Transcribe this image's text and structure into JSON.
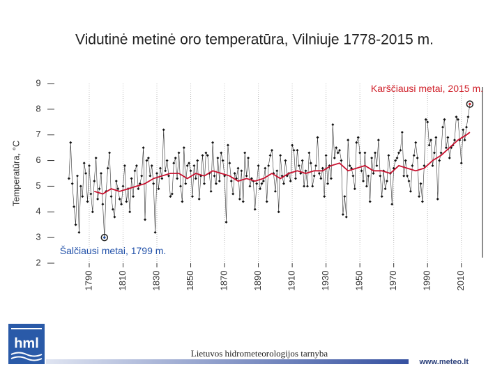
{
  "title": "Vidutinė metinė oro temperatūra, Vilniuje 1778-2015 m.",
  "footer": {
    "organization": "Lietuvos hidrometeorologijos tarnyba",
    "website": "www.meteo.lt",
    "logo": "hml"
  },
  "chart_data": {
    "type": "line",
    "ylabel": "Temperatūra, °C",
    "xlim": [
      1776,
      2020
    ],
    "xticks": [
      1790,
      1810,
      1830,
      1850,
      1870,
      1890,
      1910,
      1930,
      1950,
      1970,
      1990,
      2010
    ],
    "ylim": [
      2,
      9
    ],
    "yticks": [
      2,
      3,
      4,
      5,
      6,
      7,
      8,
      9
    ],
    "grid": true,
    "series": [
      {
        "color": "#333333",
        "x": [
          1778,
          1779,
          1780,
          1781,
          1782,
          1783,
          1784,
          1785,
          1786,
          1787,
          1788,
          1789,
          1790,
          1791,
          1792,
          1793,
          1794,
          1795,
          1796,
          1797,
          1798,
          1799,
          1800,
          1801,
          1802,
          1803,
          1804,
          1805,
          1806,
          1807,
          1808,
          1809,
          1810,
          1811,
          1812,
          1813,
          1814,
          1815,
          1816,
          1817,
          1818,
          1819,
          1820,
          1821,
          1822,
          1823,
          1824,
          1825,
          1826,
          1827,
          1828,
          1829,
          1830,
          1831,
          1832,
          1833,
          1834,
          1835,
          1836,
          1837,
          1838,
          1839,
          1840,
          1841,
          1842,
          1843,
          1844,
          1845,
          1846,
          1847,
          1848,
          1849,
          1850,
          1851,
          1852,
          1853,
          1854,
          1855,
          1856,
          1857,
          1858,
          1859,
          1860,
          1861,
          1862,
          1863,
          1864,
          1865,
          1866,
          1867,
          1868,
          1869,
          1870,
          1871,
          1872,
          1873,
          1874,
          1875,
          1876,
          1877,
          1878,
          1879,
          1880,
          1881,
          1882,
          1883,
          1884,
          1885,
          1886,
          1887,
          1888,
          1889,
          1890,
          1891,
          1892,
          1893,
          1894,
          1895,
          1896,
          1897,
          1898,
          1899,
          1900,
          1901,
          1902,
          1903,
          1904,
          1905,
          1906,
          1907,
          1908,
          1909,
          1910,
          1911,
          1912,
          1913,
          1914,
          1915,
          1916,
          1917,
          1918,
          1919,
          1920,
          1921,
          1922,
          1923,
          1924,
          1925,
          1926,
          1927,
          1928,
          1929,
          1930,
          1931,
          1932,
          1933,
          1934,
          1935,
          1936,
          1937,
          1938,
          1939,
          1940,
          1941,
          1942,
          1943,
          1944,
          1945,
          1946,
          1947,
          1948,
          1949,
          1950,
          1951,
          1952,
          1953,
          1954,
          1955,
          1956,
          1957,
          1958,
          1959,
          1960,
          1961,
          1962,
          1963,
          1964,
          1965,
          1966,
          1967,
          1968,
          1969,
          1970,
          1971,
          1972,
          1973,
          1974,
          1975,
          1976,
          1977,
          1978,
          1979,
          1980,
          1981,
          1982,
          1983,
          1984,
          1985,
          1986,
          1987,
          1988,
          1989,
          1990,
          1991,
          1992,
          1993,
          1994,
          1995,
          1996,
          1997,
          1998,
          1999,
          2000,
          2001,
          2002,
          2003,
          2004,
          2005,
          2006,
          2007,
          2008,
          2009,
          2010,
          2011,
          2012,
          2013,
          2014,
          2015
        ],
        "values": [
          5.3,
          6.7,
          5.1,
          4.2,
          3.5,
          5.4,
          3.2,
          5.0,
          4.6,
          5.9,
          5.5,
          4.4,
          5.8,
          4.7,
          4.0,
          5.2,
          6.1,
          4.5,
          4.9,
          5.5,
          4.3,
          3.0,
          4.8,
          5.7,
          6.3,
          4.6,
          4.1,
          3.8,
          5.2,
          4.9,
          4.5,
          4.3,
          5.0,
          5.8,
          4.4,
          4.9,
          4.0,
          5.3,
          4.6,
          5.6,
          5.8,
          4.9,
          5.1,
          5.4,
          6.5,
          3.7,
          6.0,
          6.1,
          5.4,
          5.8,
          5.1,
          3.2,
          5.5,
          4.9,
          5.7,
          5.3,
          7.2,
          5.6,
          6.0,
          5.4,
          4.6,
          4.7,
          5.9,
          6.1,
          5.3,
          6.3,
          5.0,
          4.4,
          6.5,
          5.1,
          5.8,
          5.9,
          5.6,
          4.6,
          5.8,
          5.3,
          6.0,
          4.5,
          5.4,
          6.2,
          5.1,
          6.3,
          6.2,
          5.5,
          4.8,
          6.7,
          5.4,
          5.1,
          6.1,
          5.2,
          6.3,
          6.0,
          5.4,
          3.6,
          6.6,
          5.9,
          5.2,
          4.7,
          5.5,
          5.3,
          5.7,
          4.5,
          5.6,
          4.4,
          6.3,
          5.4,
          6.1,
          5.0,
          5.3,
          5.2,
          4.1,
          5.1,
          5.8,
          4.9,
          5.1,
          5.2,
          5.7,
          4.4,
          5.8,
          6.2,
          6.4,
          5.5,
          4.8,
          5.6,
          4.0,
          6.2,
          5.4,
          5.1,
          6.0,
          5.4,
          5.5,
          5.2,
          6.6,
          6.4,
          5.3,
          6.4,
          5.8,
          5.5,
          6.0,
          5.0,
          5.6,
          5.0,
          6.3,
          5.9,
          5.0,
          5.4,
          5.8,
          6.9,
          5.5,
          5.3,
          5.7,
          4.6,
          6.2,
          5.1,
          5.8,
          5.3,
          7.4,
          6.1,
          6.5,
          6.3,
          6.4,
          6.0,
          3.9,
          4.6,
          3.8,
          6.8,
          5.8,
          5.7,
          5.4,
          4.9,
          6.7,
          6.9,
          6.3,
          5.6,
          5.2,
          6.3,
          5.0,
          5.4,
          4.4,
          6.1,
          5.5,
          6.3,
          5.8,
          6.8,
          5.4,
          4.6,
          5.6,
          4.9,
          5.2,
          6.2,
          5.5,
          4.3,
          5.7,
          6.0,
          6.1,
          6.3,
          6.4,
          7.1,
          5.4,
          6.0,
          5.4,
          5.2,
          4.8,
          5.8,
          6.2,
          6.7,
          6.1,
          4.6,
          5.1,
          4.4,
          5.8,
          7.6,
          7.5,
          6.6,
          6.8,
          5.8,
          6.3,
          6.9,
          4.5,
          6.0,
          6.3,
          7.3,
          7.6,
          6.5,
          6.9,
          6.1,
          6.5,
          6.6,
          6.8,
          7.7,
          7.6,
          6.8,
          5.9,
          7.2,
          6.8,
          7.3,
          7.7,
          8.2
        ]
      },
      {
        "color": "#c8102e",
        "x": [
          1793,
          1798,
          1803,
          1808,
          1813,
          1818,
          1823,
          1828,
          1833,
          1838,
          1843,
          1848,
          1853,
          1858,
          1863,
          1868,
          1873,
          1878,
          1883,
          1888,
          1893,
          1898,
          1903,
          1908,
          1913,
          1918,
          1923,
          1928,
          1933,
          1938,
          1943,
          1948,
          1953,
          1958,
          1963,
          1968,
          1973,
          1978,
          1983,
          1988,
          1993,
          1998,
          2003,
          2008,
          2013,
          2015
        ],
        "values": [
          4.8,
          4.7,
          4.9,
          4.8,
          4.9,
          5.0,
          5.1,
          5.3,
          5.4,
          5.5,
          5.5,
          5.3,
          5.5,
          5.4,
          5.6,
          5.5,
          5.4,
          5.2,
          5.3,
          5.2,
          5.3,
          5.5,
          5.3,
          5.5,
          5.6,
          5.5,
          5.6,
          5.6,
          5.8,
          5.9,
          5.6,
          5.7,
          5.8,
          5.6,
          5.6,
          5.5,
          5.8,
          5.7,
          5.6,
          5.7,
          6.0,
          6.2,
          6.5,
          6.8,
          7.0,
          7.1
        ]
      }
    ],
    "annotations": [
      {
        "text": "Karščiausi metai, 2015 m.",
        "x": 2015,
        "y": 8.2,
        "color": "#d0202a"
      },
      {
        "text": "Šalčiausi metai, 1799 m.",
        "x": 1799,
        "y": 3.0,
        "color": "#1f4fa8"
      }
    ]
  }
}
